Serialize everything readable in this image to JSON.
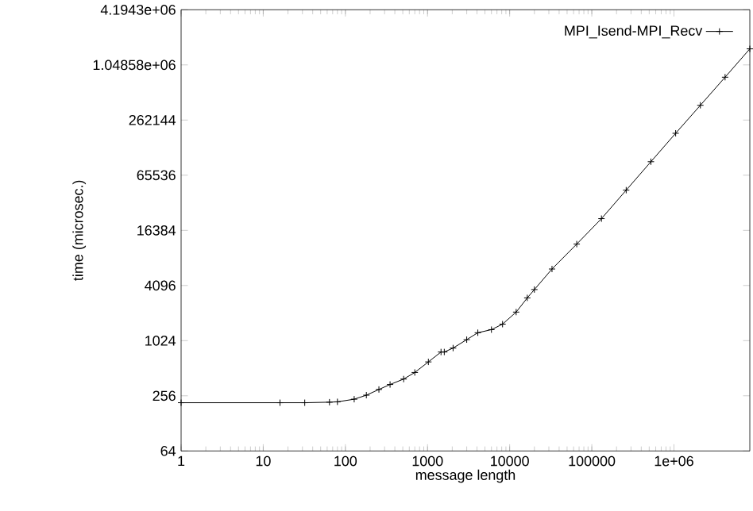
{
  "chart_data": {
    "type": "line",
    "xlabel": "message length",
    "ylabel": "time (microsec.)",
    "log": "xy",
    "legend": "top right",
    "marker": "cross",
    "line_style": "solid",
    "grid": false,
    "xlim": [
      1,
      8388608
    ],
    "ylim": [
      64,
      4194304
    ],
    "xticks": [
      1,
      10,
      100,
      1000,
      10000,
      100000,
      {
        "value": 1000000,
        "label": "1e+06"
      }
    ],
    "yticks": [
      64,
      256,
      1024,
      4096,
      16384,
      65536,
      262144,
      {
        "value": 1048576,
        "label": "1.04858e+06"
      },
      {
        "value": 4194304,
        "label": "4.1943e+06"
      }
    ],
    "series": [
      {
        "name": "MPI_Isend-MPI_Recv",
        "color": "#000000",
        "x": [
          1,
          16,
          32,
          64,
          80,
          128,
          180,
          256,
          350,
          512,
          700,
          1024,
          1460,
          1600,
          2048,
          3000,
          4096,
          6000,
          8192,
          12000,
          16384,
          20000,
          32768,
          65536,
          131072,
          262144,
          524288,
          1048576,
          2097152,
          4194304,
          8388608
        ],
        "values": [
          215,
          215,
          215,
          218,
          220,
          235,
          260,
          300,
          340,
          390,
          460,
          600,
          770,
          770,
          850,
          1050,
          1250,
          1350,
          1550,
          2100,
          3000,
          3700,
          6200,
          11600,
          22000,
          45000,
          92000,
          188000,
          380000,
          770000,
          1570000
        ]
      }
    ]
  }
}
